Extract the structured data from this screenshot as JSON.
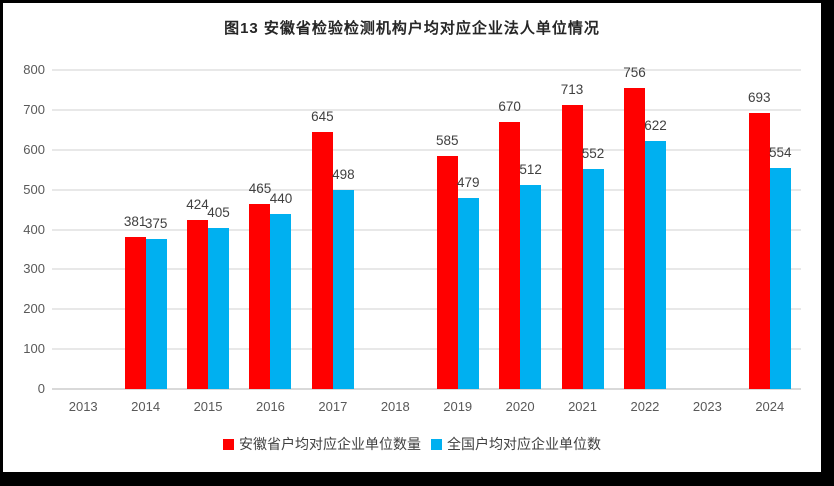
{
  "chart_data": {
    "type": "bar",
    "title": "图13 安徽省检验检测机构户均对应企业法人单位情况",
    "categories": [
      "2013",
      "2014",
      "2015",
      "2016",
      "2017",
      "2018",
      "2019",
      "2020",
      "2021",
      "2022",
      "2023",
      "2024"
    ],
    "series": [
      {
        "name": "安徽省户均对应企业单位数量",
        "color": "#FF0000",
        "values": [
          null,
          381,
          424,
          465,
          645,
          null,
          585,
          670,
          713,
          756,
          null,
          693
        ]
      },
      {
        "name": "全国户均对应企业单位数",
        "color": "#00B0F0",
        "values": [
          null,
          375,
          405,
          440,
          498,
          null,
          479,
          512,
          552,
          622,
          null,
          554
        ]
      }
    ],
    "ylim": [
      0,
      800
    ],
    "ytick_step": 100,
    "grid": true,
    "legend_position": "bottom",
    "grid_color": "#E8E8E8",
    "axis_line_color": "#D9D9D9",
    "tick_label_color": "#595959",
    "data_label_color": "#404040"
  }
}
